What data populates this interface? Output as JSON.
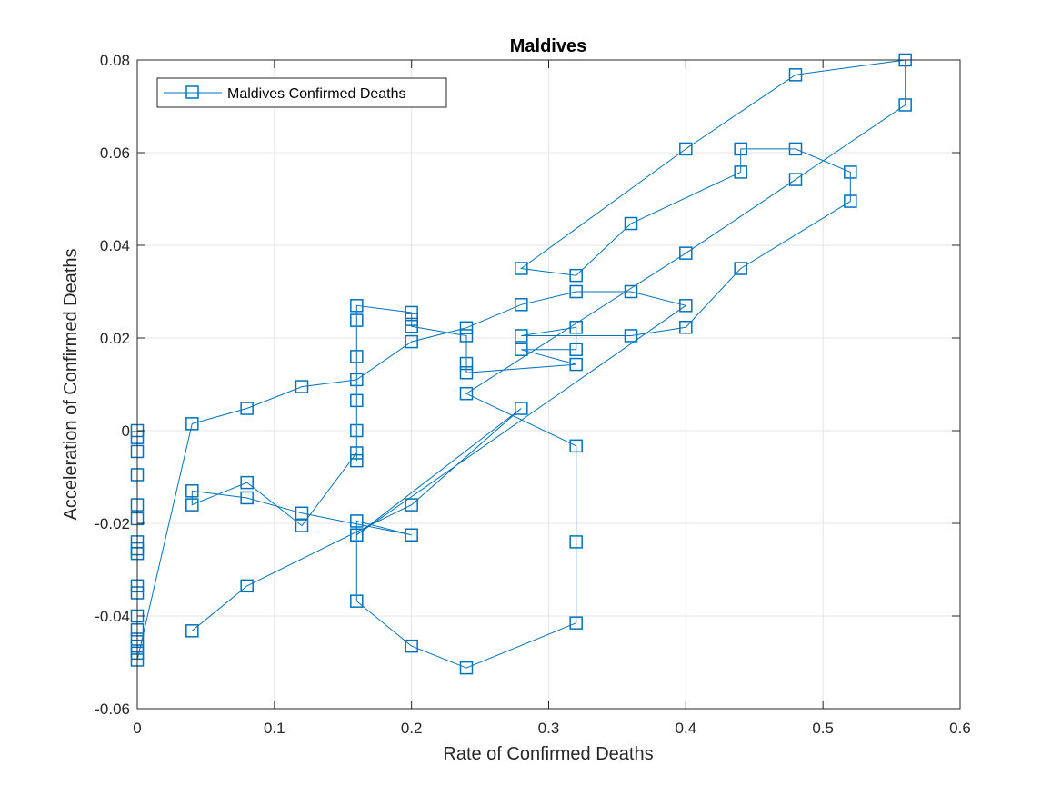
{
  "chart_data": {
    "type": "line",
    "title": "Maldives",
    "xlabel": "Rate of Confirmed Deaths",
    "ylabel": "Acceleration of Confirmed Deaths",
    "xlim": [
      0,
      0.6
    ],
    "ylim": [
      -0.06,
      0.08
    ],
    "xticks": [
      0,
      0.1,
      0.2,
      0.3,
      0.4,
      0.5,
      0.6
    ],
    "xtick_labels": [
      "0",
      "0.1",
      "0.2",
      "0.3",
      "0.4",
      "0.5",
      "0.6"
    ],
    "yticks": [
      -0.06,
      -0.04,
      -0.02,
      0,
      0.02,
      0.04,
      0.06,
      0.08
    ],
    "ytick_labels": [
      "-0.06",
      "-0.04",
      "-0.02",
      "0",
      "0.02",
      "0.04",
      "0.06",
      "0.08"
    ],
    "grid": true,
    "legend_position": "top-left",
    "color": "#0072BD",
    "marker": "square",
    "series": [
      {
        "name": "Maldives Confirmed Deaths",
        "points": [
          [
            0,
            0.0
          ],
          [
            0,
            -0.0015
          ],
          [
            0,
            -0.0045
          ],
          [
            0,
            -0.0095
          ],
          [
            0,
            -0.016
          ],
          [
            0,
            -0.019
          ],
          [
            0,
            -0.024
          ],
          [
            0,
            -0.0255
          ],
          [
            0,
            -0.0265
          ],
          [
            0,
            -0.0335
          ],
          [
            0,
            -0.035
          ],
          [
            0,
            -0.04
          ],
          [
            0,
            -0.043
          ],
          [
            0,
            -0.045
          ],
          [
            0,
            -0.0465
          ],
          [
            0,
            -0.048
          ],
          [
            0,
            -0.0495
          ],
          [
            0.04,
            0.0015
          ],
          [
            0.08,
            0.0048
          ],
          [
            0.12,
            0.0095
          ],
          [
            0.16,
            0.011
          ],
          [
            0.2,
            0.0192
          ],
          [
            0.24,
            0.0222
          ],
          [
            0.28,
            0.0272
          ],
          [
            0.32,
            0.03
          ],
          [
            0.36,
            0.03
          ],
          [
            0.4,
            0.027
          ],
          [
            0.16,
            -0.0225
          ],
          [
            0.16,
            -0.0195
          ],
          [
            0.2,
            -0.0225
          ],
          [
            0.12,
            -0.0178
          ],
          [
            0.08,
            -0.0145
          ],
          [
            0.04,
            -0.013
          ],
          [
            0.04,
            -0.016
          ],
          [
            0.08,
            -0.0112
          ],
          [
            0.12,
            -0.0205
          ],
          [
            0.16,
            -0.0048
          ],
          [
            0.16,
            -0.0065
          ],
          [
            0.16,
            0.0
          ],
          [
            0.16,
            0.0065
          ],
          [
            0.16,
            0.016
          ],
          [
            0.16,
            0.0238
          ],
          [
            0.16,
            0.027
          ],
          [
            0.2,
            0.0255
          ],
          [
            0.2,
            0.024
          ],
          [
            0.2,
            0.0225
          ],
          [
            0.24,
            0.0205
          ],
          [
            0.24,
            0.0145
          ],
          [
            0.24,
            0.0125
          ],
          [
            0.32,
            0.0143
          ],
          [
            0.28,
            0.0175
          ],
          [
            0.32,
            0.0175
          ],
          [
            0.32,
            0.0223
          ],
          [
            0.28,
            0.0205
          ],
          [
            0.36,
            0.0205
          ],
          [
            0.4,
            0.0223
          ],
          [
            0.44,
            0.035
          ],
          [
            0.52,
            0.0495
          ],
          [
            0.52,
            0.0558
          ],
          [
            0.48,
            0.0608
          ],
          [
            0.44,
            0.0608
          ],
          [
            0.44,
            0.0558
          ],
          [
            0.36,
            0.0447
          ],
          [
            0.32,
            0.0335
          ],
          [
            0.28,
            0.035
          ],
          [
            0.4,
            0.0608
          ],
          [
            0.48,
            0.0768
          ],
          [
            0.56,
            0.08
          ],
          [
            0.56,
            0.0703
          ],
          [
            0.48,
            0.0542
          ],
          [
            0.4,
            0.0383
          ],
          [
            0.24,
            0.008
          ],
          [
            0.32,
            -0.0033
          ],
          [
            0.32,
            -0.024
          ],
          [
            0.32,
            -0.0415
          ],
          [
            0.24,
            -0.0512
          ],
          [
            0.2,
            -0.0465
          ],
          [
            0.16,
            -0.0368
          ],
          [
            0.16,
            -0.0225
          ],
          [
            0.28,
            0.0048
          ],
          [
            0.2,
            -0.016
          ],
          [
            0.08,
            -0.0335
          ],
          [
            0.04,
            -0.0432
          ]
        ]
      }
    ]
  }
}
